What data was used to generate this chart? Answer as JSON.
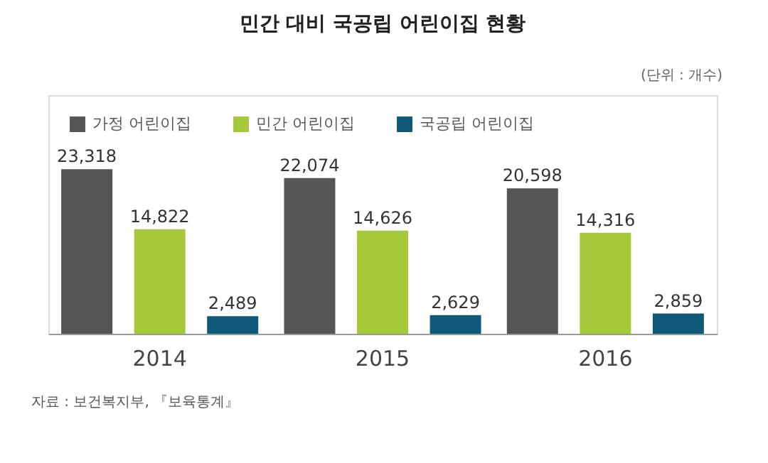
{
  "chart_data": {
    "type": "bar",
    "title": "민간 대비 국공립 어린이집 현황",
    "annotations": [
      "(단위 : 개수)",
      "자료 : 보건복지부, 『보육통계』"
    ],
    "categories": [
      "2014",
      "2015",
      "2016"
    ],
    "series": [
      {
        "name": "가정 어린이집",
        "color": "#555557",
        "values": [
          23318,
          22074,
          20598
        ],
        "value_labels": [
          "23,318",
          "22,074",
          "20,598"
        ]
      },
      {
        "name": "민간 어린이집",
        "color": "#a5c93a",
        "values": [
          14822,
          14626,
          14316
        ],
        "value_labels": [
          "14,822",
          "14,626",
          "14,316"
        ]
      },
      {
        "name": "국공립 어린이집",
        "color": "#0e5878",
        "values": [
          2489,
          2629,
          2859
        ],
        "value_labels": [
          "2,489",
          "2,629",
          "2,859"
        ]
      }
    ],
    "legend": "top left"
  }
}
